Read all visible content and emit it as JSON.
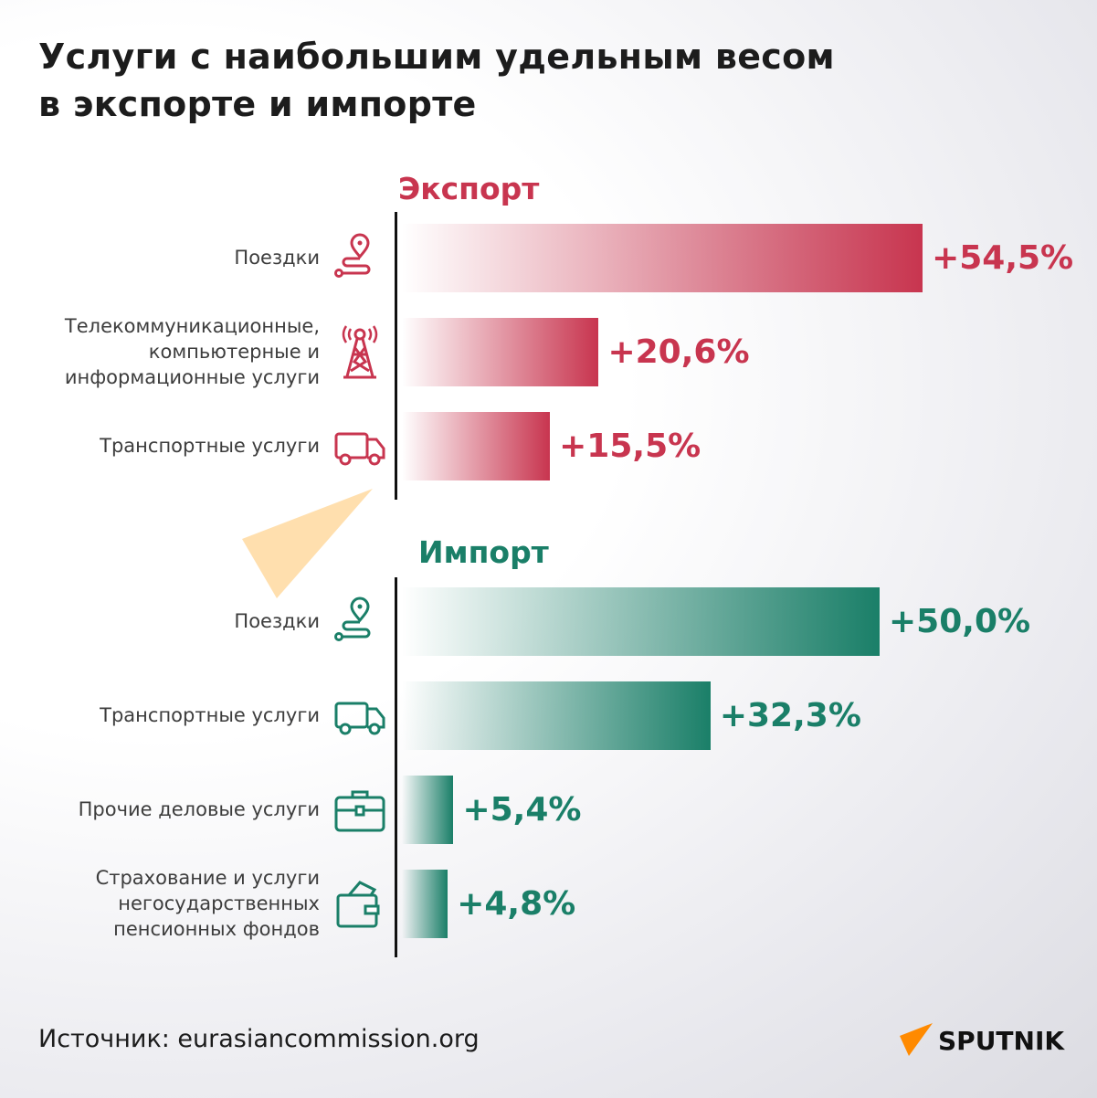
{
  "title": [
    "Услуги с наибольшим удельным весом",
    "в экспорте и импорте"
  ],
  "colors": {
    "export": "#c8354f",
    "import": "#1a7f68"
  },
  "chart_data": {
    "type": "bar",
    "orientation": "horizontal",
    "unit": "%",
    "groups": [
      {
        "name": "Экспорт",
        "color": "#c8354f",
        "items": [
          {
            "label": "Поездки",
            "icon": "route-pin-icon",
            "value": 54.5,
            "display": "+54,5%"
          },
          {
            "label": "Телекоммуникационные, компьютерные и информационные услуги",
            "label_lines": [
              "Телекоммуникационные,",
              "компьютерные и",
              "информационные услуги"
            ],
            "icon": "radio-tower-icon",
            "value": 20.6,
            "display": "+20,6%"
          },
          {
            "label": "Транспортные услуги",
            "icon": "truck-icon",
            "value": 15.5,
            "display": "+15,5%"
          }
        ]
      },
      {
        "name": "Импорт",
        "color": "#1a7f68",
        "items": [
          {
            "label": "Поездки",
            "icon": "route-pin-icon",
            "value": 50.0,
            "display": "+50,0%"
          },
          {
            "label": "Транспортные услуги",
            "icon": "truck-icon",
            "value": 32.3,
            "display": "+32,3%"
          },
          {
            "label": "Прочие деловые услуги",
            "icon": "briefcase-icon",
            "value": 5.4,
            "display": "+5,4%"
          },
          {
            "label": "Страхование и услуги негосударственных пенсионных фондов",
            "label_lines": [
              "Страхование и услуги",
              "негосударственных",
              "пенсионных фондов"
            ],
            "icon": "wallet-icon",
            "value": 4.8,
            "display": "+4,8%"
          }
        ]
      }
    ]
  },
  "source": "Источник: eurasiancommission.org",
  "watermark": "SPUTNIK",
  "logo": "SPUTNIK"
}
